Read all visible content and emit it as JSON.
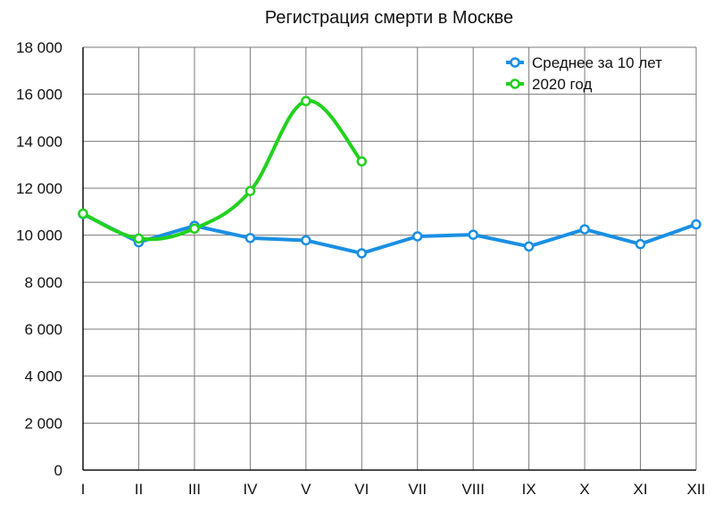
{
  "chart_data": {
    "type": "line",
    "title": "Регистрация смерти в Москве",
    "xlabel": "",
    "ylabel": "",
    "categories": [
      "I",
      "II",
      "III",
      "IV",
      "V",
      "VI",
      "VII",
      "VIII",
      "IX",
      "X",
      "XI",
      "XII"
    ],
    "ylim": [
      0,
      18000
    ],
    "yticks": [
      0,
      2000,
      4000,
      6000,
      8000,
      10000,
      12000,
      14000,
      16000,
      18000
    ],
    "ytick_labels": [
      "0",
      "2 000",
      "4 000",
      "6 000",
      "8 000",
      "10 000",
      "12 000",
      "14 000",
      "16 000",
      "18 000"
    ],
    "grid": true,
    "legend_position": "top-right",
    "series": [
      {
        "name": "Среднее за 10 лет",
        "color": "#1a8fe3",
        "values": [
          10900,
          9700,
          10400,
          9880,
          9780,
          9230,
          9950,
          10020,
          9520,
          10250,
          9620,
          10460
        ]
      },
      {
        "name": "2020 год",
        "color": "#22d11f",
        "values": [
          10920,
          9860,
          10280,
          11880,
          15710,
          13140,
          null,
          null,
          null,
          null,
          null,
          null
        ]
      }
    ]
  }
}
